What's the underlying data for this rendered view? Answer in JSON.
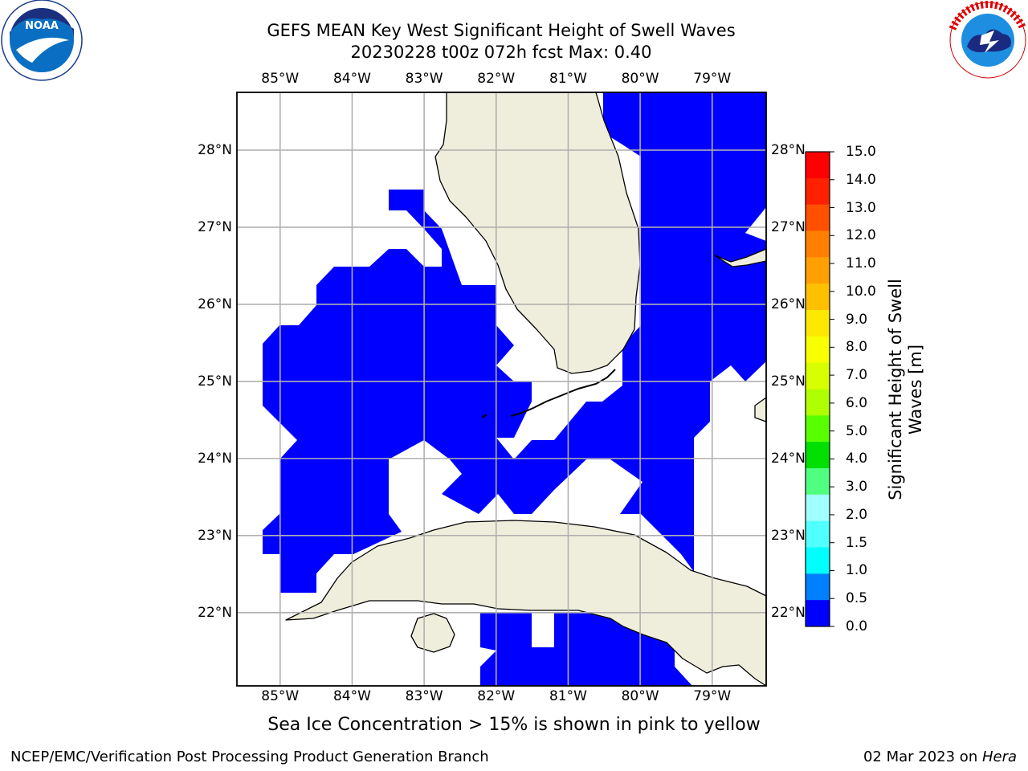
{
  "header": {
    "title_line1": "GEFS MEAN Key West Significant Height of Swell Waves",
    "title_line2": "20230228 t00z 072h fcst   Max: 0.40"
  },
  "logos": {
    "left": {
      "name": "noaa-logo",
      "text": "NOAA",
      "ring_text": "NATIONAL OCEANIC AND ATMOSPHERIC ADMINISTRATION · U.S. DEPARTMENT OF COMMERCE"
    },
    "right": {
      "name": "nws-logo",
      "ring_text": "NATIONAL WEATHER SERVICE"
    }
  },
  "map": {
    "extent": {
      "lon": [
        -85.6,
        -78.25
      ],
      "lat": [
        21.05,
        28.75
      ]
    },
    "lon_ticks": [
      "85°W",
      "84°W",
      "83°W",
      "82°W",
      "81°W",
      "80°W",
      "79°W"
    ],
    "lat_ticks": [
      "28°N",
      "27°N",
      "26°N",
      "25°N",
      "24°N",
      "23°N",
      "22°N"
    ],
    "land_color": "#efeedc",
    "swell_color": "#0000ff",
    "grid": true
  },
  "colorbar": {
    "label": "Significant Height of Swell Waves [m]",
    "ticks": [
      "15.0",
      "14.0",
      "13.0",
      "12.0",
      "11.0",
      "10.0",
      "9.0",
      "8.0",
      "7.0",
      "6.0",
      "5.0",
      "4.0",
      "3.0",
      "2.0",
      "1.5",
      "1.0",
      "0.5",
      "0.0"
    ],
    "colors_top_to_bottom": [
      "#ff0000",
      "#ff2000",
      "#ff5000",
      "#ff8000",
      "#ffa000",
      "#ffc000",
      "#ffe800",
      "#f8ff00",
      "#d8ff00",
      "#b0ff00",
      "#58ff00",
      "#00e000",
      "#50ff80",
      "#a0ffff",
      "#50ffff",
      "#00ffff",
      "#0080ff",
      "#0000ff"
    ]
  },
  "note": "Sea Ice Concentration > 15% is shown in pink to yellow",
  "footer": {
    "left": "NCEP/EMC/Verification Post Processing Product Generation Branch",
    "right_date": "02 Mar 2023 on ",
    "right_host": "Hera"
  }
}
